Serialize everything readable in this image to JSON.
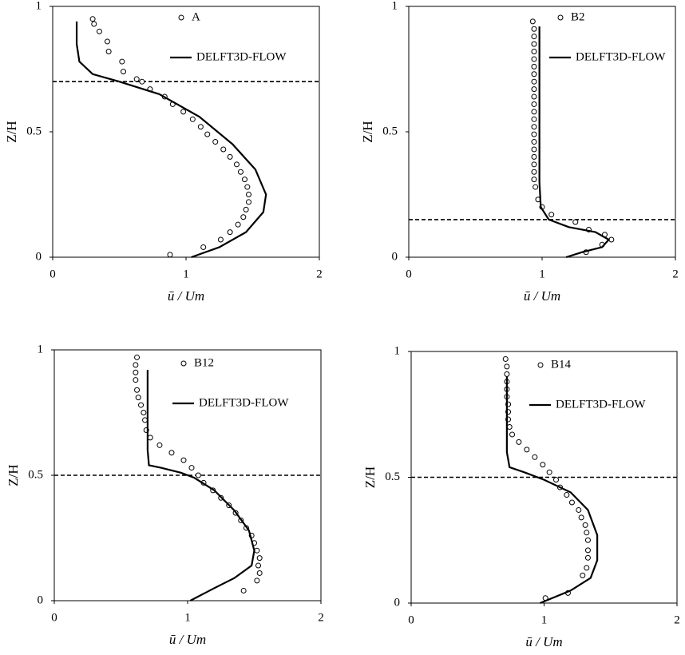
{
  "chart_data": [
    {
      "type": "line",
      "xlabel": "ū / Um",
      "ylabel": "Z/H",
      "xlim": [
        0,
        2
      ],
      "ylim": [
        0,
        1
      ],
      "xticks": [
        0,
        1,
        2
      ],
      "yticks": [
        0,
        0.5,
        1
      ],
      "reference_line": 0.7,
      "series": [
        {
          "name": "A",
          "mode": "markers",
          "color": "#000000",
          "x": [
            0.3,
            0.31,
            0.35,
            0.41,
            0.42,
            0.52,
            0.53,
            0.63,
            0.67,
            0.73,
            0.84,
            0.9,
            0.98,
            1.05,
            1.11,
            1.16,
            1.22,
            1.28,
            1.33,
            1.38,
            1.41,
            1.44,
            1.46,
            1.47,
            1.47,
            1.45,
            1.43,
            1.39,
            1.33,
            1.26,
            1.13,
            0.88
          ],
          "values": [
            0.95,
            0.93,
            0.9,
            0.86,
            0.82,
            0.78,
            0.74,
            0.71,
            0.7,
            0.67,
            0.64,
            0.61,
            0.58,
            0.55,
            0.52,
            0.49,
            0.46,
            0.43,
            0.4,
            0.37,
            0.34,
            0.31,
            0.28,
            0.25,
            0.22,
            0.19,
            0.16,
            0.13,
            0.1,
            0.07,
            0.04,
            0.01
          ]
        },
        {
          "name": "DELFT3D-FLOW",
          "mode": "line",
          "color": "#000000",
          "x": [
            0.18,
            0.18,
            0.2,
            0.3,
            0.5,
            0.8,
            1.1,
            1.35,
            1.52,
            1.6,
            1.58,
            1.45,
            1.25,
            1.04
          ],
          "values": [
            0.94,
            0.85,
            0.78,
            0.73,
            0.7,
            0.65,
            0.56,
            0.45,
            0.35,
            0.25,
            0.18,
            0.1,
            0.04,
            0
          ]
        }
      ]
    },
    {
      "type": "line",
      "xlabel": "ū / Um",
      "ylabel": "Z/H",
      "xlim": [
        0,
        2
      ],
      "ylim": [
        0,
        1
      ],
      "xticks": [
        0,
        1,
        2
      ],
      "yticks": [
        0,
        0.5,
        1
      ],
      "reference_line": 0.15,
      "series": [
        {
          "name": "B2",
          "mode": "markers",
          "color": "#000000",
          "x": [
            0.93,
            0.94,
            0.94,
            0.94,
            0.94,
            0.94,
            0.94,
            0.94,
            0.94,
            0.94,
            0.94,
            0.94,
            0.94,
            0.94,
            0.94,
            0.94,
            0.94,
            0.94,
            0.94,
            0.94,
            0.94,
            0.94,
            0.95,
            0.97,
            1.0,
            1.07,
            1.25,
            1.35,
            1.47,
            1.52,
            1.45,
            1.33
          ],
          "values": [
            0.94,
            0.91,
            0.88,
            0.85,
            0.82,
            0.79,
            0.76,
            0.73,
            0.7,
            0.67,
            0.64,
            0.61,
            0.58,
            0.55,
            0.52,
            0.49,
            0.46,
            0.43,
            0.4,
            0.37,
            0.34,
            0.31,
            0.28,
            0.23,
            0.2,
            0.17,
            0.14,
            0.11,
            0.09,
            0.07,
            0.05,
            0.02
          ]
        },
        {
          "name": "DELFT3D-FLOW",
          "mode": "line",
          "color": "#000000",
          "x": [
            0.98,
            0.98,
            0.99,
            1.05,
            1.2,
            1.4,
            1.5,
            1.45,
            1.3,
            1.18
          ],
          "values": [
            0.92,
            0.3,
            0.2,
            0.15,
            0.12,
            0.1,
            0.07,
            0.04,
            0.02,
            0
          ]
        }
      ]
    },
    {
      "type": "line",
      "xlabel": "ū / Um",
      "ylabel": "Z/H",
      "xlim": [
        0,
        2
      ],
      "ylim": [
        0,
        1
      ],
      "xticks": [
        0,
        1,
        2
      ],
      "yticks": [
        0,
        0.5,
        1
      ],
      "reference_line": 0.5,
      "series": [
        {
          "name": "B12",
          "mode": "markers",
          "color": "#000000",
          "x": [
            0.62,
            0.61,
            0.61,
            0.61,
            0.62,
            0.63,
            0.65,
            0.67,
            0.68,
            0.69,
            0.72,
            0.79,
            0.88,
            0.97,
            1.03,
            1.08,
            1.12,
            1.19,
            1.25,
            1.31,
            1.36,
            1.4,
            1.44,
            1.48,
            1.5,
            1.52,
            1.54,
            1.53,
            1.54,
            1.52,
            1.42
          ],
          "values": [
            0.97,
            0.94,
            0.91,
            0.88,
            0.84,
            0.81,
            0.78,
            0.75,
            0.72,
            0.68,
            0.65,
            0.62,
            0.59,
            0.56,
            0.53,
            0.5,
            0.47,
            0.44,
            0.41,
            0.38,
            0.35,
            0.32,
            0.29,
            0.26,
            0.23,
            0.2,
            0.17,
            0.14,
            0.11,
            0.08,
            0.04
          ]
        },
        {
          "name": "DELFT3D-FLOW",
          "mode": "line",
          "color": "#000000",
          "x": [
            0.7,
            0.7,
            0.71,
            0.8,
            0.95,
            1.05,
            1.2,
            1.35,
            1.46,
            1.5,
            1.48,
            1.35,
            1.2,
            1.02
          ],
          "values": [
            0.92,
            0.6,
            0.54,
            0.53,
            0.51,
            0.49,
            0.44,
            0.36,
            0.28,
            0.2,
            0.14,
            0.09,
            0.05,
            0
          ]
        }
      ]
    },
    {
      "type": "line",
      "xlabel": "ū / Um",
      "ylabel": "Z/H",
      "xlim": [
        0,
        2
      ],
      "ylim": [
        0,
        1
      ],
      "xticks": [
        0,
        1,
        2
      ],
      "yticks": [
        0,
        0.5,
        1
      ],
      "reference_line": 0.5,
      "series": [
        {
          "name": "B14",
          "mode": "markers",
          "color": "#000000",
          "x": [
            0.71,
            0.72,
            0.72,
            0.72,
            0.72,
            0.72,
            0.73,
            0.73,
            0.73,
            0.74,
            0.76,
            0.81,
            0.87,
            0.93,
            0.99,
            1.04,
            1.09,
            1.12,
            1.17,
            1.21,
            1.26,
            1.28,
            1.31,
            1.32,
            1.33,
            1.33,
            1.33,
            1.32,
            1.29,
            1.18,
            1.01
          ],
          "values": [
            0.97,
            0.94,
            0.91,
            0.88,
            0.85,
            0.82,
            0.79,
            0.76,
            0.73,
            0.7,
            0.67,
            0.64,
            0.61,
            0.58,
            0.55,
            0.52,
            0.49,
            0.46,
            0.43,
            0.4,
            0.37,
            0.34,
            0.31,
            0.28,
            0.25,
            0.21,
            0.18,
            0.14,
            0.11,
            0.04,
            0.02
          ]
        },
        {
          "name": "DELFT3D-FLOW",
          "mode": "line",
          "color": "#000000",
          "x": [
            0.72,
            0.72,
            0.74,
            0.85,
            1.0,
            1.2,
            1.33,
            1.4,
            1.4,
            1.35,
            1.2,
            0.97
          ],
          "values": [
            0.9,
            0.6,
            0.54,
            0.52,
            0.49,
            0.44,
            0.37,
            0.27,
            0.17,
            0.1,
            0.05,
            0
          ]
        }
      ]
    }
  ]
}
